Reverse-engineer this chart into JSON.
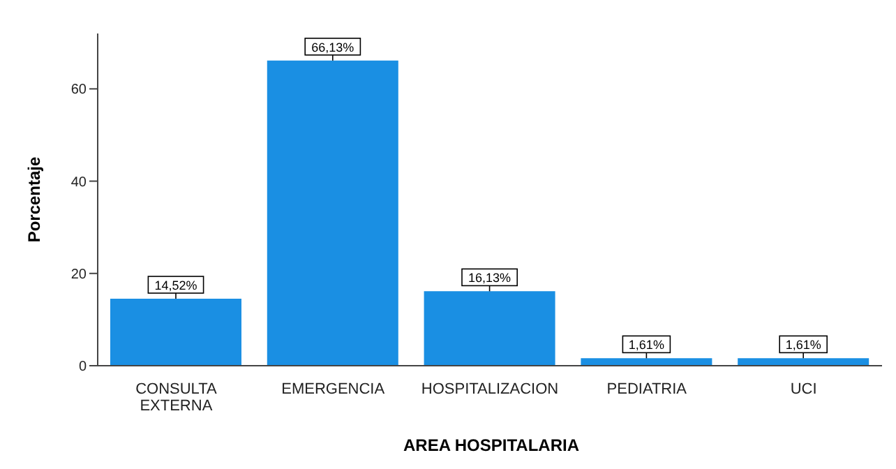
{
  "chart_data": {
    "type": "bar",
    "xlabel": "AREA HOSPITALARIA",
    "ylabel": "Porcentaje",
    "categories": [
      "CONSULTA EXTERNA",
      "EMERGENCIA",
      "HOSPITALIZACION",
      "PEDIATRIA",
      "UCI"
    ],
    "values": [
      14.52,
      66.13,
      16.13,
      1.61,
      1.61
    ],
    "value_labels": [
      "14,52%",
      "66,13%",
      "16,13%",
      "1,61%",
      "1,61%"
    ],
    "color": "#1a8fe3",
    "ylim": [
      0,
      72
    ],
    "yticks": [
      0,
      20,
      40,
      60
    ],
    "grid": false
  }
}
